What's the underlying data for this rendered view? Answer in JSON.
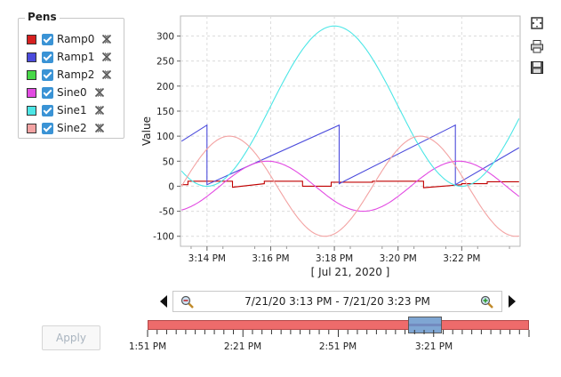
{
  "pens": {
    "title": "Pens",
    "items": [
      {
        "name": "Ramp0",
        "color": "#d62020"
      },
      {
        "name": "Ramp1",
        "color": "#4b4bdc"
      },
      {
        "name": "Ramp2",
        "color": "#48d848"
      },
      {
        "name": "Sine0",
        "color": "#e24be2"
      },
      {
        "name": "Sine1",
        "color": "#4ce6e6"
      },
      {
        "name": "Sine2",
        "color": "#f3a3a3"
      }
    ]
  },
  "toolbar": {
    "fit_icon": "fit-to-view-icon",
    "print_icon": "printer-icon",
    "save_icon": "floppy-disk-icon"
  },
  "apply_label": "Apply",
  "range_text": "7/21/20 3:13 PM - 7/21/20 3:23 PM",
  "chart_data": {
    "type": "line",
    "ylabel": "Value",
    "xlabel": "[ Jul 21, 2020 ]",
    "ylim": [
      -120,
      340
    ],
    "yticks": [
      -100,
      -50,
      0,
      50,
      100,
      150,
      200,
      250,
      300
    ],
    "xlim": [
      "3:13:10 PM",
      "3:23:50 PM"
    ],
    "xticks": [
      {
        "label": "3:14 PM",
        "t": 1
      },
      {
        "label": "3:16 PM",
        "t": 3
      },
      {
        "label": "3:18 PM",
        "t": 5
      },
      {
        "label": "3:20 PM",
        "t": 7
      },
      {
        "label": "3:22 PM",
        "t": 9
      }
    ],
    "grid": true,
    "series": [
      {
        "name": "Ramp0",
        "color": "#c00000",
        "x": [
          0.2,
          0.4,
          0.4,
          1.8,
          1.8,
          2.8,
          2.8,
          4.0,
          4.0,
          4.9,
          4.9,
          6.2,
          6.2,
          7.8,
          7.8,
          9.0,
          9.0,
          9.8,
          9.8,
          10.8
        ],
        "y": [
          3,
          3,
          10,
          10,
          -2,
          5,
          10,
          10,
          0,
          0,
          8,
          8,
          10,
          10,
          -3,
          3,
          5,
          5,
          9,
          9
        ]
      },
      {
        "name": "Ramp1",
        "color": "#4b4bdc",
        "x": [
          0.2,
          1.0,
          1.0,
          5.15,
          5.15,
          8.8,
          8.8,
          10.8
        ],
        "y": [
          90,
          122,
          3,
          122,
          5,
          122,
          3,
          77
        ]
      },
      {
        "name": "Sine0",
        "color": "#e24be2",
        "amplitude": 50,
        "period": 6,
        "phase": -1.4,
        "x_start": 0.2,
        "x_end": 10.8
      },
      {
        "name": "Sine1",
        "color": "#4ce6e6",
        "amplitude": 160,
        "period": 8,
        "phase": -1.0,
        "offset": 160,
        "x_start": 0.2,
        "x_end": 10.8
      },
      {
        "name": "Sine2",
        "color": "#f3a3a3",
        "amplitude": 100,
        "period": 6,
        "phase": -0.2,
        "x_start": 0.2,
        "x_end": 10.8
      }
    ]
  },
  "timeline": {
    "labels": [
      "1:51 PM",
      "2:21 PM",
      "2:51 PM",
      "3:21 PM"
    ]
  }
}
